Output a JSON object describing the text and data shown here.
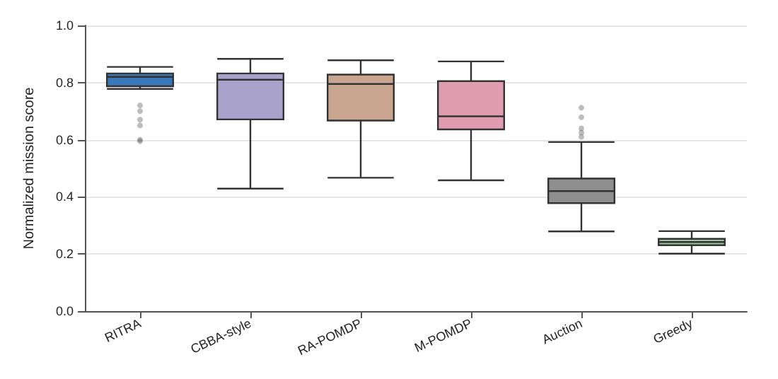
{
  "chart_data": {
    "type": "box",
    "ylabel": "Normalized mission score",
    "categories": [
      "RITRA",
      "CBBA-style",
      "RA-POMDP",
      "M-POMDP",
      "Auction",
      "Greedy"
    ],
    "colors": [
      "#3a78b8",
      "#a9a3cc",
      "#c9a48e",
      "#e09cb0",
      "#8f8f8f",
      "#9bc49b"
    ],
    "boxes": [
      {
        "low": 0.778,
        "q1": 0.787,
        "median": 0.82,
        "q3": 0.832,
        "high": 0.855,
        "outliers": [
          0.595,
          0.6,
          0.65,
          0.67,
          0.7,
          0.72
        ]
      },
      {
        "low": 0.429,
        "q1": 0.671,
        "median": 0.81,
        "q3": 0.832,
        "high": 0.883
      },
      {
        "low": 0.467,
        "q1": 0.667,
        "median": 0.795,
        "q3": 0.828,
        "high": 0.878
      },
      {
        "low": 0.458,
        "q1": 0.636,
        "median": 0.682,
        "q3": 0.805,
        "high": 0.874
      },
      {
        "low": 0.279,
        "q1": 0.378,
        "median": 0.42,
        "q3": 0.464,
        "high": 0.592,
        "outliers": [
          0.61,
          0.625,
          0.64,
          0.679,
          0.712
        ]
      },
      {
        "low": 0.201,
        "q1": 0.231,
        "median": 0.242,
        "q3": 0.253,
        "high": 0.28
      }
    ],
    "ylim": [
      0,
      1
    ],
    "yticks": [
      {
        "value": 0,
        "label": "0.0"
      },
      0.2,
      0.4,
      0.6,
      0.8,
      {
        "value": 1,
        "label": "1.0"
      }
    ],
    "grid": "y"
  }
}
